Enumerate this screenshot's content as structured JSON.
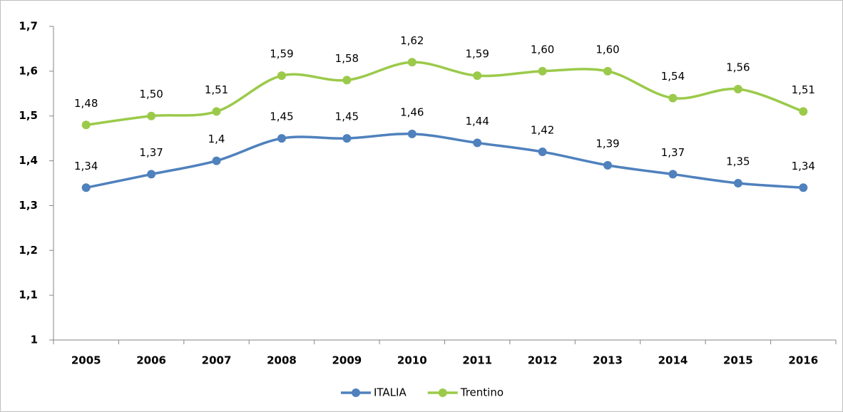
{
  "chart_data": {
    "type": "line",
    "categories": [
      "2005",
      "2006",
      "2007",
      "2008",
      "2009",
      "2010",
      "2011",
      "2012",
      "2013",
      "2014",
      "2015",
      "2016"
    ],
    "series": [
      {
        "name": "ITALIA",
        "color": "#4f81bd",
        "values": [
          1.34,
          1.37,
          1.4,
          1.45,
          1.45,
          1.46,
          1.44,
          1.42,
          1.39,
          1.37,
          1.35,
          1.34
        ],
        "value_labels": [
          "1,34",
          "1,37",
          "1,4",
          "1,45",
          "1,45",
          "1,46",
          "1,44",
          "1,42",
          "1,39",
          "1,37",
          "1,35",
          "1,34"
        ]
      },
      {
        "name": "Trentino",
        "color": "#9bca4a",
        "values": [
          1.48,
          1.5,
          1.51,
          1.59,
          1.58,
          1.62,
          1.59,
          1.6,
          1.6,
          1.54,
          1.56,
          1.51
        ],
        "value_labels": [
          "1,48",
          "1,50",
          "1,51",
          "1,59",
          "1,58",
          "1,62",
          "1,59",
          "1,60",
          "1,60",
          "1,54",
          "1,56",
          "1,51"
        ]
      }
    ],
    "ylim": [
      1,
      1.7
    ],
    "yticks": [
      1,
      {
        "value": 1.1,
        "label": "1,1"
      },
      {
        "value": 1.2,
        "label": "1,2"
      },
      {
        "value": 1.3,
        "label": "1,3"
      },
      {
        "value": 1.4,
        "label": "1,4"
      },
      {
        "value": 1.5,
        "label": "1,5"
      },
      {
        "value": 1.6,
        "label": "1,6"
      },
      {
        "value": 1.7,
        "label": "1,7"
      }
    ],
    "grid": false,
    "legend": "bottom",
    "smooth": true
  }
}
